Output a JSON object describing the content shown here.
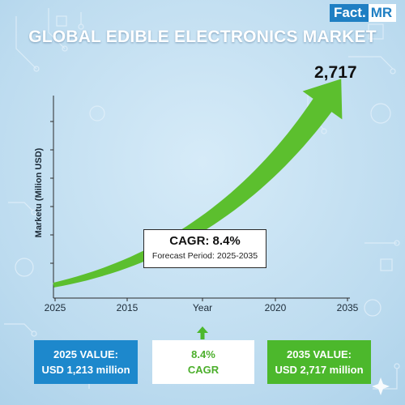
{
  "logo": {
    "part1": "Fact.",
    "part2": "MR"
  },
  "title": "GLOBAL EDIBLE ELECTRONICS MARKET",
  "colors": {
    "arrow": "#5cbf2e",
    "primary_blue": "#1d88cc",
    "green": "#4cb82c",
    "background": "#c4dff0"
  },
  "chart_data": {
    "type": "area",
    "ylabel": "Marketu (Milion USD)",
    "xlabel": "Year",
    "x_ticks": [
      "2025",
      "2015",
      "2020",
      "2035"
    ],
    "series": [
      {
        "values": [
          {
            "year": 2025,
            "value": 1213
          },
          {
            "year": 2035,
            "value": 2717
          }
        ]
      }
    ],
    "end_label": "2,717",
    "annotation": {
      "title": "CAGR: 8.4%",
      "subtitle": "Forecast Period: 2025-2035"
    },
    "grid": false
  },
  "stats": {
    "left": {
      "line1": "2025 VALUE:",
      "line2": "USD 1,213 million"
    },
    "middle": {
      "line1": "8.4%",
      "line2": "CAGR"
    },
    "right": {
      "line1": "2035 VALUE:",
      "line2": "USD 2,717 million"
    }
  }
}
